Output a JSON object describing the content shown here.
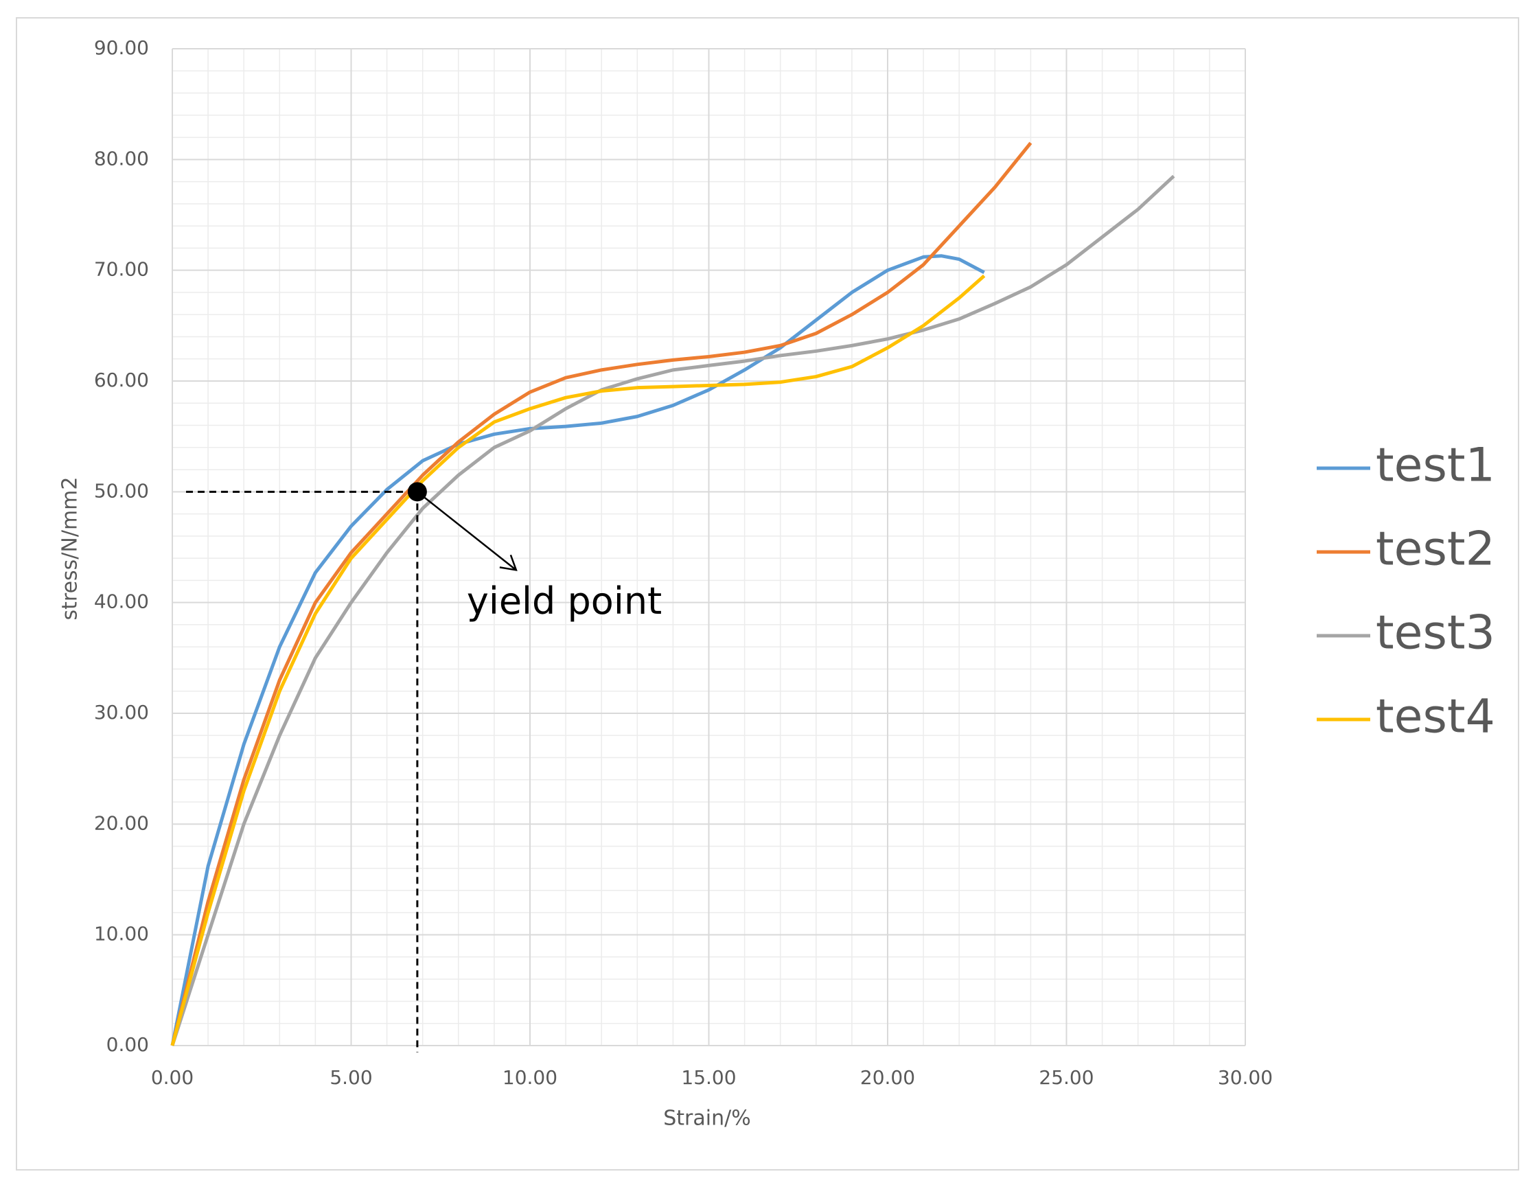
{
  "chart_data": {
    "type": "line",
    "x_label": "Strain/%",
    "y_label": "stress/N/mm2",
    "xlim": [
      0,
      30
    ],
    "ylim": [
      0,
      90
    ],
    "xticks": [
      {
        "value": 0,
        "label": "0.00"
      },
      {
        "value": 5,
        "label": "5.00"
      },
      {
        "value": 10,
        "label": "10.00"
      },
      {
        "value": 15,
        "label": "15.00"
      },
      {
        "value": 20,
        "label": "20.00"
      },
      {
        "value": 25,
        "label": "25.00"
      },
      {
        "value": 30,
        "label": "30.00"
      }
    ],
    "yticks": [
      {
        "value": 0,
        "label": "0.00"
      },
      {
        "value": 10,
        "label": "10.00"
      },
      {
        "value": 20,
        "label": "20.00"
      },
      {
        "value": 30,
        "label": "30.00"
      },
      {
        "value": 40,
        "label": "40.00"
      },
      {
        "value": 50,
        "label": "50.00"
      },
      {
        "value": 60,
        "label": "60.00"
      },
      {
        "value": 70,
        "label": "70.00"
      },
      {
        "value": 80,
        "label": "80.00"
      },
      {
        "value": 90,
        "label": "90.00"
      }
    ],
    "grid": true,
    "minor_grid": true,
    "legend": "right",
    "series": [
      {
        "name": "test1",
        "color": "#5b9bd5",
        "x": [
          0,
          1,
          2,
          3,
          4,
          5,
          6,
          7,
          8,
          9,
          10,
          11,
          12,
          13,
          14,
          15,
          16,
          17,
          18,
          19,
          20,
          21,
          21.5,
          22,
          22.7
        ],
        "values": [
          0,
          16.2,
          27.2,
          36,
          42.7,
          46.9,
          50.2,
          52.8,
          54.3,
          55.2,
          55.7,
          55.9,
          56.2,
          56.8,
          57.8,
          59.2,
          61,
          63,
          65.5,
          68,
          70,
          71.2,
          71.3,
          71,
          69.8
        ]
      },
      {
        "name": "test2",
        "color": "#ed7d31",
        "x": [
          0,
          1,
          2,
          3,
          4,
          5,
          6,
          7,
          8,
          9,
          10,
          11,
          12,
          13,
          14,
          15,
          16,
          17,
          18,
          19,
          20,
          21,
          22,
          23,
          24
        ],
        "values": [
          0,
          13,
          24,
          33,
          40,
          44.5,
          48,
          51.5,
          54.5,
          57,
          59,
          60.3,
          61,
          61.5,
          61.9,
          62.2,
          62.6,
          63.2,
          64.3,
          66,
          68,
          70.5,
          74,
          77.5,
          81.5
        ]
      },
      {
        "name": "test3",
        "color": "#a5a5a5",
        "x": [
          0,
          1,
          2,
          3,
          4,
          5,
          6,
          7,
          8,
          9,
          10,
          11,
          12,
          13,
          14,
          15,
          16,
          17,
          18,
          19,
          20,
          21,
          22,
          23,
          24,
          25,
          26,
          27,
          28
        ],
        "values": [
          0,
          10,
          20,
          28,
          35,
          40,
          44.5,
          48.5,
          51.5,
          54,
          55.5,
          57.5,
          59.2,
          60.2,
          61,
          61.4,
          61.8,
          62.3,
          62.7,
          63.2,
          63.8,
          64.6,
          65.6,
          67,
          68.5,
          70.5,
          73,
          75.5,
          78.5
        ]
      },
      {
        "name": "test4",
        "color": "#ffc000",
        "x": [
          0,
          1,
          2,
          3,
          4,
          5,
          6,
          7,
          8,
          9,
          10,
          11,
          12,
          13,
          14,
          15,
          16,
          17,
          18,
          19,
          20,
          21,
          22,
          22.7
        ],
        "values": [
          0,
          12,
          23,
          32,
          39,
          44,
          47.5,
          51,
          54,
          56.3,
          57.5,
          58.5,
          59.1,
          59.4,
          59.5,
          59.6,
          59.7,
          59.9,
          60.4,
          61.3,
          63,
          65,
          67.5,
          69.5
        ]
      }
    ],
    "annotations": [
      {
        "text": "yield point",
        "x": 6.85,
        "y": 50
      }
    ]
  }
}
